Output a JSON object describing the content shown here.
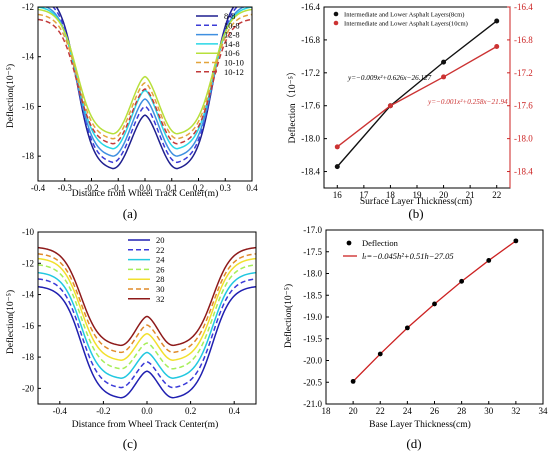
{
  "panel_labels": [
    "(a)",
    "(b)",
    "(c)",
    "(d)"
  ],
  "colors": {
    "pa": [
      "#1f1f8f",
      "#3b3bd6",
      "#3f8fe0",
      "#29d7e6",
      "#b7e03b",
      "#e3a43b",
      "#c23a3a"
    ],
    "pc": [
      "#2020b0",
      "#3a3ad8",
      "#22c8e0",
      "#a6ee58",
      "#f2e02e",
      "#e08a2a",
      "#8e1a1a"
    ],
    "black_series": "#111111",
    "red_series": "#cc3333",
    "red_axis": "#cc2222",
    "fit_line": "#cc2222"
  },
  "chart_data": [
    {
      "id": "a",
      "type": "line",
      "xlabel": "Distance from Wheel Track Center(m)",
      "ylabel": "Deflection(10⁻⁵)",
      "xlim": [
        -0.4,
        0.4
      ],
      "ylim": [
        -19,
        -12
      ],
      "xticks": [
        -0.4,
        -0.3,
        -0.2,
        -0.1,
        0.0,
        0.1,
        0.2,
        0.3,
        0.4
      ],
      "xtick_labels": [
        "-0.4",
        "-0.3",
        "-0.2",
        "-0.1",
        "0.0",
        "0.1",
        "0.2",
        "0.3",
        "0.4"
      ],
      "yticks": [
        -18,
        -16,
        -14,
        -12
      ],
      "ytick_labels": [
        "-18",
        "-16",
        "-14",
        "-12"
      ],
      "legend_position": "top-right",
      "series": [
        {
          "name": "8-8",
          "dash": "solid",
          "peak": -18.5,
          "center": -16.35,
          "edge": -11.5
        },
        {
          "name": "10-8",
          "dash": "dash",
          "peak": -18.25,
          "center": -16.0,
          "edge": -11.7
        },
        {
          "name": "12-8",
          "dash": "solid",
          "peak": -18.0,
          "center": -15.7,
          "edge": -11.9
        },
        {
          "name": "14-8",
          "dash": "solid",
          "peak": -17.7,
          "center": -15.35,
          "edge": -12.0
        },
        {
          "name": "10-6",
          "dash": "solid",
          "peak": -17.1,
          "center": -14.8,
          "edge": -12.1
        },
        {
          "name": "10-10",
          "dash": "dash",
          "peak": -17.3,
          "center": -15.05,
          "edge": -12.3
        },
        {
          "name": "10-12",
          "dash": "dash",
          "peak": -17.5,
          "center": -15.3,
          "edge": -12.5
        }
      ]
    },
    {
      "id": "b",
      "type": "scatter",
      "xlabel": "Surface Layer Thickness(cm)",
      "ylabel": "Deflection（10⁻⁵）",
      "x": [
        16,
        18,
        20,
        22
      ],
      "xlim": [
        15.5,
        22.5
      ],
      "xticks": [
        16,
        17,
        18,
        19,
        20,
        21,
        22
      ],
      "xtick_labels": [
        "16",
        "17",
        "18",
        "19",
        "20",
        "21",
        "22"
      ],
      "ylim_left": [
        -18.6,
        -16.4
      ],
      "ylim_right": [
        -18.6,
        -16.4
      ],
      "yticks": [
        -18.4,
        -18.0,
        -17.6,
        -17.2,
        -16.8,
        -16.4
      ],
      "ytick_labels": [
        "-18.4",
        "-18.0",
        "-17.6",
        "-17.2",
        "-16.8",
        "-16.4"
      ],
      "legend_position": "top-left",
      "series": [
        {
          "name": "Intermediate and Lower Asphalt Layers(8cm)",
          "values": [
            -18.34,
            -17.6,
            -17.07,
            -16.57
          ],
          "axis": "left",
          "equation": "y=−0.009x²+0.626x−26.127"
        },
        {
          "name": "Intermediate and Lower Asphalt Layers(10cm)",
          "values": [
            -18.1,
            -17.6,
            -17.25,
            -16.88
          ],
          "axis": "right",
          "equation": "y=−0.001x²+0.258x−21.94"
        }
      ]
    },
    {
      "id": "c",
      "type": "line",
      "xlabel": "Distance from Wheel Track Center(m)",
      "ylabel": "Deflection(10⁻⁵)",
      "xlim": [
        -0.5,
        0.5
      ],
      "ylim": [
        -21,
        -10
      ],
      "xticks": [
        -0.4,
        -0.2,
        0.0,
        0.2,
        0.4
      ],
      "xtick_labels": [
        "-0.4",
        "-0.2",
        "0.0",
        "0.2",
        "0.4"
      ],
      "yticks": [
        -20,
        -18,
        -16,
        -14,
        -12,
        -10
      ],
      "ytick_labels": [
        "-20",
        "-18",
        "-16",
        "-14",
        "-12",
        "-10"
      ],
      "legend_position": "top-center",
      "series": [
        {
          "name": "20",
          "dash": "solid",
          "peak": -20.6,
          "center": -18.9,
          "edge": -13.5
        },
        {
          "name": "22",
          "dash": "dash",
          "peak": -19.95,
          "center": -18.3,
          "edge": -13.0
        },
        {
          "name": "24",
          "dash": "solid",
          "peak": -19.35,
          "center": -17.7,
          "edge": -12.6
        },
        {
          "name": "26",
          "dash": "dash",
          "peak": -18.75,
          "center": -17.1,
          "edge": -12.1
        },
        {
          "name": "28",
          "dash": "solid",
          "peak": -18.2,
          "center": -16.5,
          "edge": -11.7
        },
        {
          "name": "30",
          "dash": "dash",
          "peak": -17.7,
          "center": -15.95,
          "edge": -11.4
        },
        {
          "name": "32",
          "dash": "solid",
          "peak": -17.25,
          "center": -15.4,
          "edge": -11.0
        }
      ]
    },
    {
      "id": "d",
      "type": "scatter",
      "xlabel": "Base Layer Thickness(cm)",
      "ylabel": "Deflection(10⁻⁵)",
      "x": [
        20,
        22,
        24,
        26,
        28,
        30,
        32
      ],
      "xlim": [
        18,
        34
      ],
      "xticks": [
        18,
        20,
        22,
        24,
        26,
        28,
        30,
        32,
        34
      ],
      "xtick_labels": [
        "18",
        "20",
        "22",
        "24",
        "26",
        "28",
        "30",
        "32",
        "34"
      ],
      "ylim": [
        -21.0,
        -17.0
      ],
      "yticks": [
        -21.0,
        -20.5,
        -20.0,
        -19.5,
        -19.0,
        -18.5,
        -18.0,
        -17.5,
        -17.0
      ],
      "ytick_labels": [
        "-21.0",
        "-20.5",
        "-20.0",
        "-19.5",
        "-19.0",
        "-18.5",
        "-18.0",
        "-17.5",
        "-17.0"
      ],
      "legend_position": "top-left",
      "series": [
        {
          "name": "Deflection",
          "values": [
            -20.48,
            -19.85,
            -19.25,
            -18.7,
            -18.18,
            -17.7,
            -17.25
          ]
        },
        {
          "name": "lₜ=−0.045h²+0.51h−27.05",
          "fit": [
            -0.045,
            0.51,
            -27.05
          ]
        }
      ]
    }
  ]
}
